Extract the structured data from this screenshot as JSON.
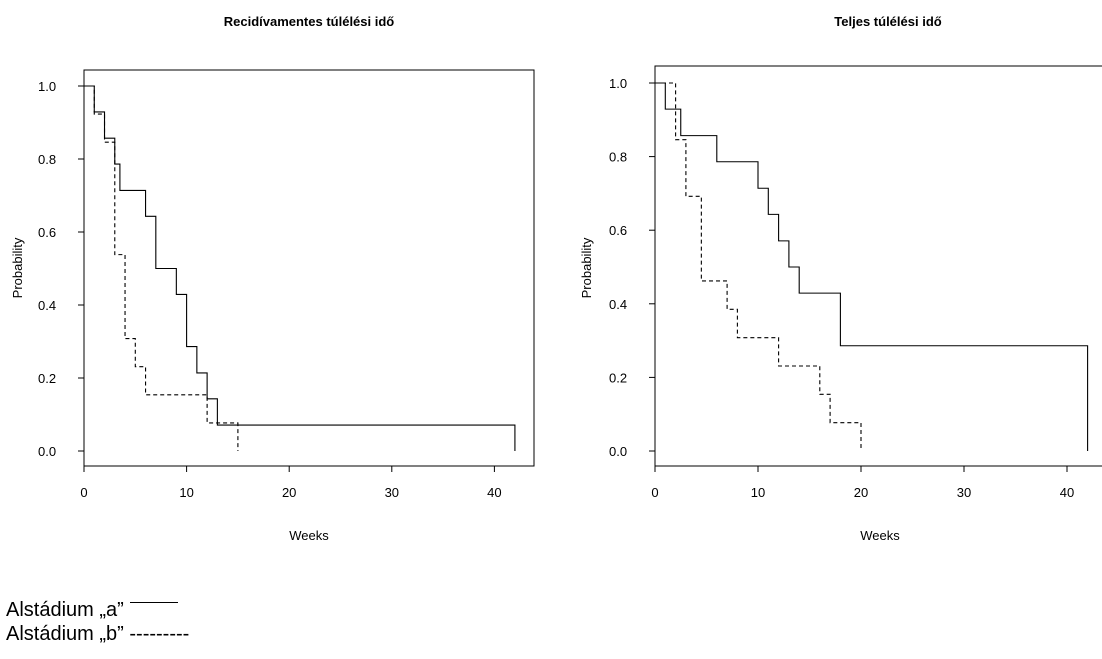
{
  "chart_data": [
    {
      "type": "line",
      "step": true,
      "title": "Recidívamentes túlélési idő",
      "xlabel": "Weeks",
      "ylabel": "Probability",
      "xlim": [
        0,
        44
      ],
      "ylim": [
        0,
        1.0
      ],
      "xticks": [
        "0",
        "10",
        "20",
        "30",
        "40"
      ],
      "yticks": [
        "0.0",
        "0.2",
        "0.4",
        "0.6",
        "0.8",
        "1.0"
      ],
      "grid": false,
      "series": [
        {
          "style": "solid",
          "times": [
            1,
            2,
            3,
            3.5,
            6,
            7,
            9,
            10,
            11,
            12,
            13,
            42
          ],
          "values": [
            0.929,
            0.857,
            0.786,
            0.714,
            0.643,
            0.5,
            0.429,
            0.286,
            0.214,
            0.143,
            0.071,
            0.0
          ]
        },
        {
          "style": "dashed",
          "times": [
            1,
            2,
            3,
            4,
            5,
            6,
            12,
            13,
            15
          ],
          "values": [
            0.923,
            0.846,
            0.538,
            0.308,
            0.231,
            0.154,
            0.077,
            0.077,
            0.0
          ]
        }
      ]
    },
    {
      "type": "line",
      "step": true,
      "title": "Teljes túlélési idő",
      "xlabel": "Weeks",
      "ylabel": "Probability",
      "xlim": [
        0,
        44
      ],
      "ylim": [
        0,
        1.0
      ],
      "xticks": [
        "0",
        "10",
        "20",
        "30",
        "40"
      ],
      "yticks": [
        "0.0",
        "0.2",
        "0.4",
        "0.6",
        "0.8",
        "1.0"
      ],
      "grid": false,
      "series": [
        {
          "style": "solid",
          "times": [
            1,
            2.5,
            6,
            10,
            11,
            12,
            13,
            14,
            18,
            42
          ],
          "values": [
            0.929,
            0.857,
            0.786,
            0.714,
            0.643,
            0.571,
            0.5,
            0.429,
            0.286,
            0.0
          ]
        },
        {
          "style": "dashed",
          "times": [
            2,
            3,
            4.5,
            7,
            8,
            12,
            16,
            17,
            20
          ],
          "values": [
            0.846,
            0.692,
            0.462,
            0.385,
            0.308,
            0.231,
            0.154,
            0.077,
            0.0
          ]
        }
      ]
    }
  ],
  "legend": {
    "a_label": "Alstádium „a”",
    "b_label": "Alstádium „b” ---------"
  }
}
